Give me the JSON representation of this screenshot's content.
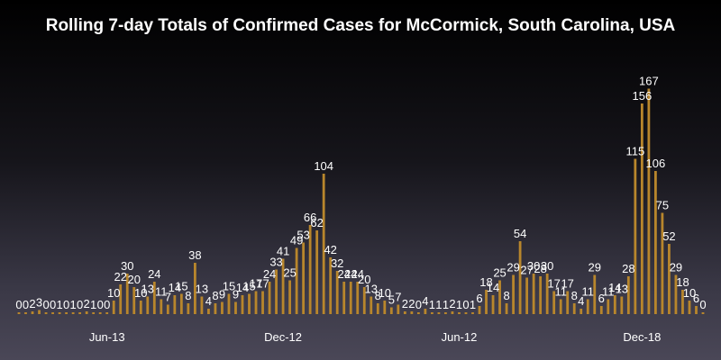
{
  "chart_data": {
    "type": "bar",
    "title": "Rolling 7-day Totals of Confirmed Cases for McCormick, South Carolina, USA",
    "xlabel": "",
    "ylabel": "",
    "ylim": [
      0,
      180
    ],
    "grid": false,
    "legend": "none",
    "bar_color": "#b8862c",
    "text_color": "#ffffff",
    "x_tick_labels": [
      {
        "label": "Jun-13",
        "index": 13
      },
      {
        "label": "Dec-12",
        "index": 39
      },
      {
        "label": "Jun-12",
        "index": 65
      },
      {
        "label": "Dec-18",
        "index": 92
      }
    ],
    "values": [
      0,
      0,
      2,
      3,
      0,
      0,
      1,
      0,
      1,
      0,
      2,
      1,
      0,
      0,
      10,
      22,
      30,
      20,
      10,
      13,
      24,
      11,
      7,
      14,
      15,
      8,
      38,
      13,
      4,
      8,
      9,
      15,
      9,
      14,
      15,
      17,
      17,
      24,
      33,
      41,
      25,
      49,
      53,
      66,
      62,
      104,
      42,
      32,
      24,
      24,
      24,
      20,
      13,
      8,
      10,
      5,
      7,
      2,
      2,
      0,
      4,
      1,
      1,
      1,
      2,
      1,
      0,
      1,
      6,
      18,
      14,
      25,
      8,
      29,
      54,
      27,
      30,
      28,
      30,
      17,
      11,
      17,
      8,
      4,
      11,
      29,
      6,
      11,
      14,
      13,
      28,
      115,
      156,
      167,
      106,
      75,
      52,
      29,
      18,
      10,
      6,
      0
    ]
  }
}
